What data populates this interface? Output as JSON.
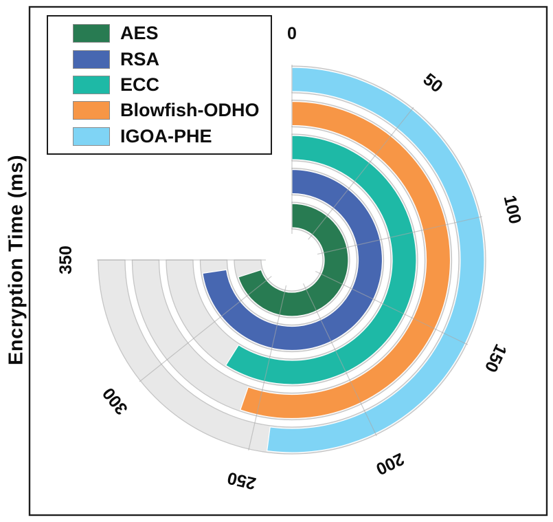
{
  "figure": {
    "ylabel": "Encryption Time (ms)"
  },
  "chart_data": {
    "type": "radial-bar",
    "title": "",
    "ylabel": "Encryption Time (ms)",
    "units": "ms",
    "angular_axis": {
      "ticks": [
        0,
        50,
        100,
        150,
        200,
        250,
        300,
        350
      ],
      "min": 0,
      "max": 350,
      "sweep_deg": 270,
      "start": "top",
      "direction": "clockwise"
    },
    "ring_order_inner_to_outer": [
      "AES",
      "RSA",
      "ECC",
      "Blowfish-ODHO",
      "IGOA-PHE"
    ],
    "series": [
      {
        "name": "AES",
        "value": 327,
        "color": "#287b52"
      },
      {
        "name": "RSA",
        "value": 339,
        "color": "#4767b1"
      },
      {
        "name": "ECC",
        "value": 275,
        "color": "#1eb9a6"
      },
      {
        "name": "Blowfish-ODHO",
        "value": 258,
        "color": "#f79646"
      },
      {
        "name": "IGOA-PHE",
        "value": 243,
        "color": "#7fd4f5"
      }
    ],
    "track": {
      "max": 350,
      "fill": "#e8e8e8",
      "border": "#c5c5c5"
    },
    "grid": {
      "show": true,
      "color": "#a8a8a8"
    },
    "legend_position": "top-left",
    "tick_label_color": "#0d0d0d",
    "frame_color": "#1f1f1f"
  }
}
